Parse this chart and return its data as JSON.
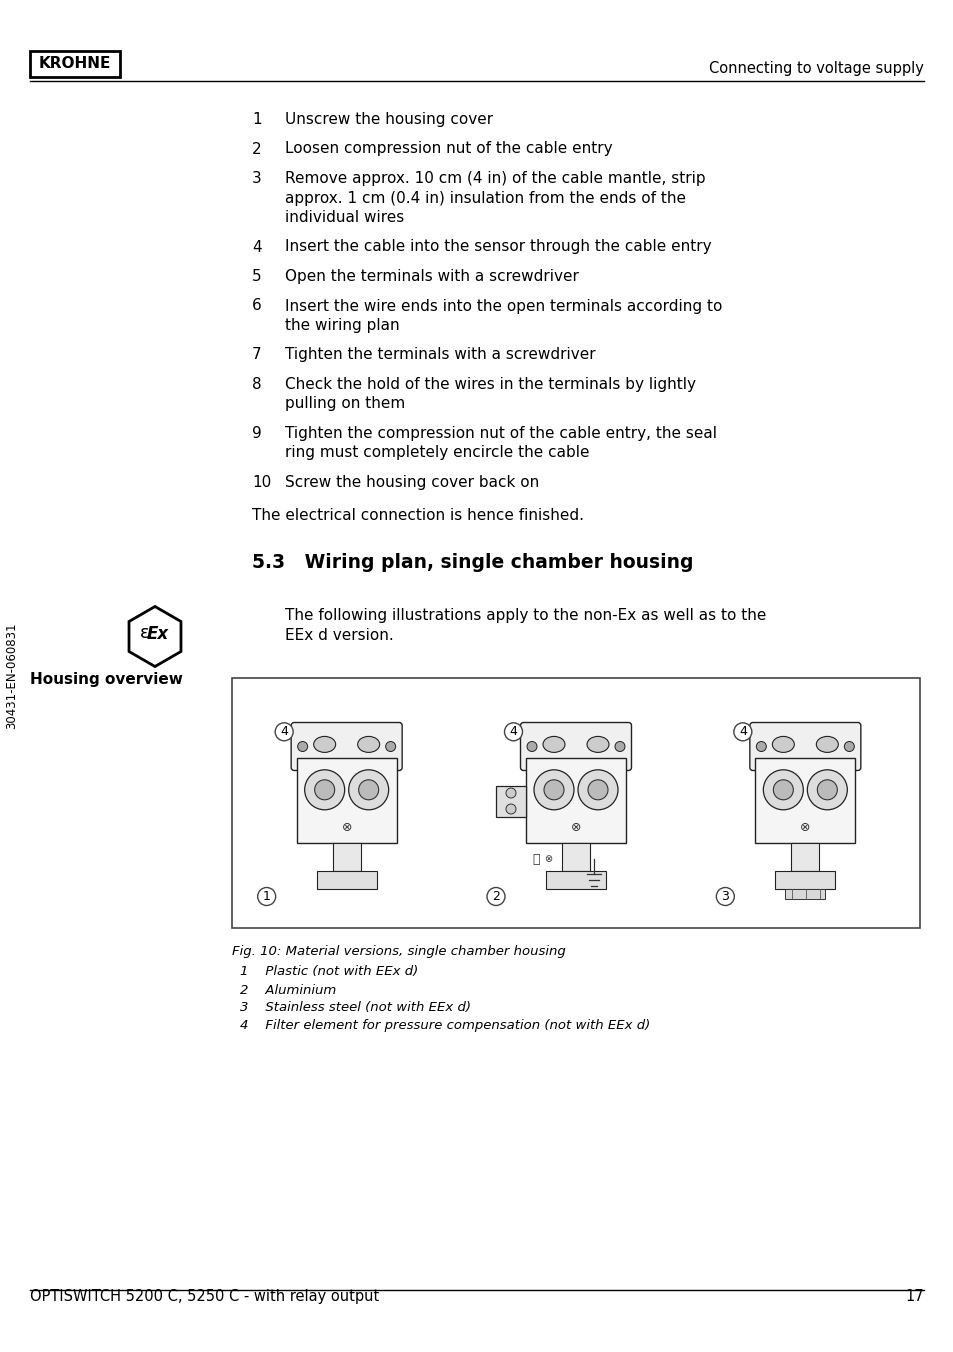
{
  "page_bg": "#ffffff",
  "text_color": "#000000",
  "krohne_text": "KROHNE",
  "header_right_text": "Connecting to voltage supply",
  "footer_left_text": "OPTISWITCH 5200 C, 5250 C - with relay output",
  "footer_right_text": "17",
  "side_text": "30431-EN-060831",
  "numbered_items": [
    {
      "n": "1",
      "lines": [
        "Unscrew the housing cover"
      ]
    },
    {
      "n": "2",
      "lines": [
        "Loosen compression nut of the cable entry"
      ]
    },
    {
      "n": "3",
      "lines": [
        "Remove approx. 10 cm (4 in) of the cable mantle, strip",
        "approx. 1 cm (0.4 in) insulation from the ends of the",
        "individual wires"
      ]
    },
    {
      "n": "4",
      "lines": [
        "Insert the cable into the sensor through the cable entry"
      ]
    },
    {
      "n": "5",
      "lines": [
        "Open the terminals with a screwdriver"
      ]
    },
    {
      "n": "6",
      "lines": [
        "Insert the wire ends into the open terminals according to",
        "the wiring plan"
      ]
    },
    {
      "n": "7",
      "lines": [
        "Tighten the terminals with a screwdriver"
      ]
    },
    {
      "n": "8",
      "lines": [
        "Check the hold of the wires in the terminals by lightly",
        "pulling on them"
      ]
    },
    {
      "n": "9",
      "lines": [
        "Tighten the compression nut of the cable entry, the seal",
        "ring must completely encircle the cable"
      ]
    },
    {
      "n": "10",
      "lines": [
        "Screw the housing cover back on"
      ]
    }
  ],
  "closing_text": "The electrical connection is hence finished.",
  "section_title": "5.3   Wiring plan, single chamber housing",
  "intro_lines": [
    "The following illustrations apply to the non-Ex as well as to the",
    "EEx d version."
  ],
  "housing_label": "Housing overview",
  "fig_caption_title": "Fig. 10: Material versions, single chamber housing",
  "fig_captions": [
    "1    Plastic (not with EEx d)",
    "2    Aluminium",
    "3    Stainless steel (not with EEx d)",
    "4    Filter element for pressure compensation (not with EEx d)"
  ],
  "font_size_body": 11.0,
  "font_size_header": 10.5,
  "font_size_section": 13.5,
  "font_size_caption": 9.5,
  "font_size_side": 8.5
}
